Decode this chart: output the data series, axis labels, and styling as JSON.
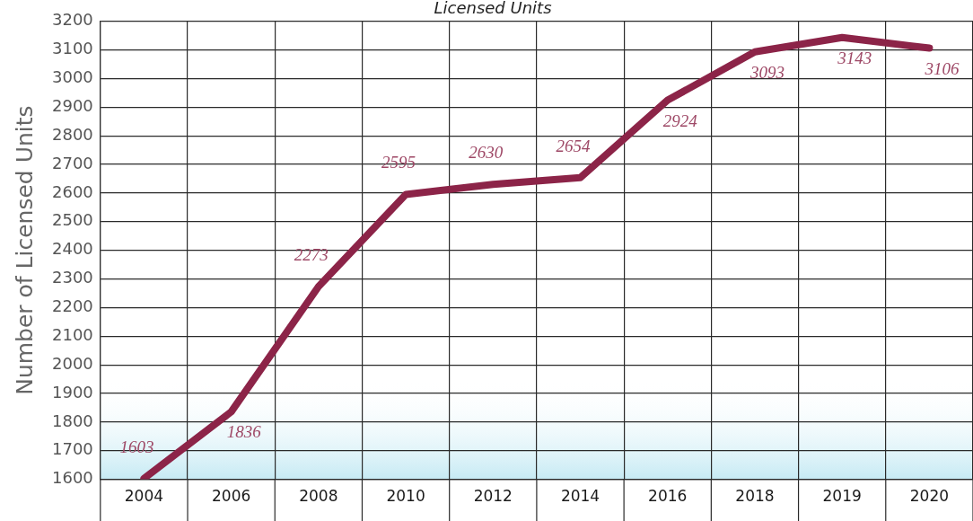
{
  "chart_data": {
    "type": "line",
    "title": "Licensed Units",
    "ylabel": "Number of Licensed Units",
    "categories": [
      "2004",
      "2006",
      "2008",
      "2010",
      "2012",
      "2014",
      "2016",
      "2018",
      "2019",
      "2020"
    ],
    "series": [
      {
        "color": "#8c2448",
        "values": [
          1603,
          1836,
          2273,
          2595,
          2630,
          2654,
          2924,
          3093,
          3143,
          3106
        ]
      }
    ],
    "ylim": [
      1600,
      3200
    ],
    "yticks": [
      1600,
      1700,
      1800,
      1900,
      2000,
      2100,
      2200,
      2300,
      2400,
      2500,
      2600,
      2700,
      2800,
      2900,
      3000,
      3100,
      3200
    ],
    "grid": true,
    "data_labels": true,
    "bands": [
      {
        "axis": "y",
        "from": 1600,
        "to": 1950,
        "color": "#c6eaf4"
      }
    ]
  }
}
